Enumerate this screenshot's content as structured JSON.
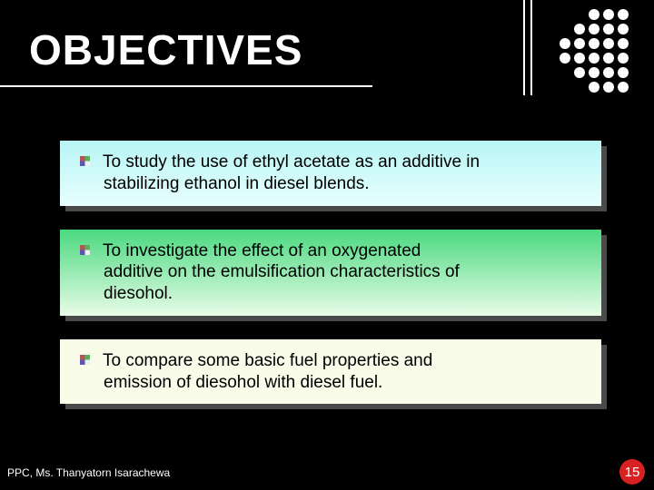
{
  "title": "OBJECTIVES",
  "decor": {
    "dot_rows": 6,
    "dot_cols": 6,
    "dot_hidden": [
      [
        0,
        0
      ],
      [
        0,
        1
      ],
      [
        0,
        2
      ],
      [
        1,
        0
      ],
      [
        1,
        1
      ],
      [
        2,
        0
      ],
      [
        3,
        0
      ],
      [
        4,
        0
      ],
      [
        4,
        1
      ],
      [
        5,
        0
      ],
      [
        5,
        1
      ],
      [
        5,
        2
      ]
    ],
    "dot_color": "#ffffff"
  },
  "objectives": [
    {
      "text_line1": "To study the use of ethyl acetate as an additive in",
      "text_line2": "stabilizing ethanol in diesel blends.",
      "gradient_from": "#b8f5f5",
      "gradient_to": "#e8fefe",
      "bullet_colors": [
        "#c06060",
        "#60c060",
        "#6060c0",
        "#ffffff"
      ]
    },
    {
      "text_line1": "To investigate the effect of an oxygenated",
      "text_line2_indent": "  additive on the emulsification characteristics of",
      "text_line3": "diesohol.",
      "gradient_from": "#4ad97f",
      "gradient_to": "#e8fce8",
      "bullet_colors": [
        "#c06060",
        "#60c060",
        "#6060c0",
        "#ffffff"
      ]
    },
    {
      "text_line1": "To compare some basic fuel properties and",
      "text_line2": "emission of diesohol with diesel fuel.",
      "gradient_from": "#f8fce8",
      "gradient_to": "#f8fce8",
      "bullet_colors": [
        "#c06060",
        "#60c060",
        "#6060c0",
        "#ffffff"
      ]
    }
  ],
  "footer": "PPC, Ms. Thanyatorn Isarachewa",
  "page_number": "15",
  "colors": {
    "background": "#000000",
    "title": "#ffffff",
    "footer_text": "#ffffff",
    "page_badge_bg": "#d82020",
    "page_badge_text": "#ffffff",
    "shadow": "#4a4a4a"
  },
  "font": {
    "title_size": 46,
    "body_size": 19,
    "footer_size": 12,
    "page_size": 15
  }
}
